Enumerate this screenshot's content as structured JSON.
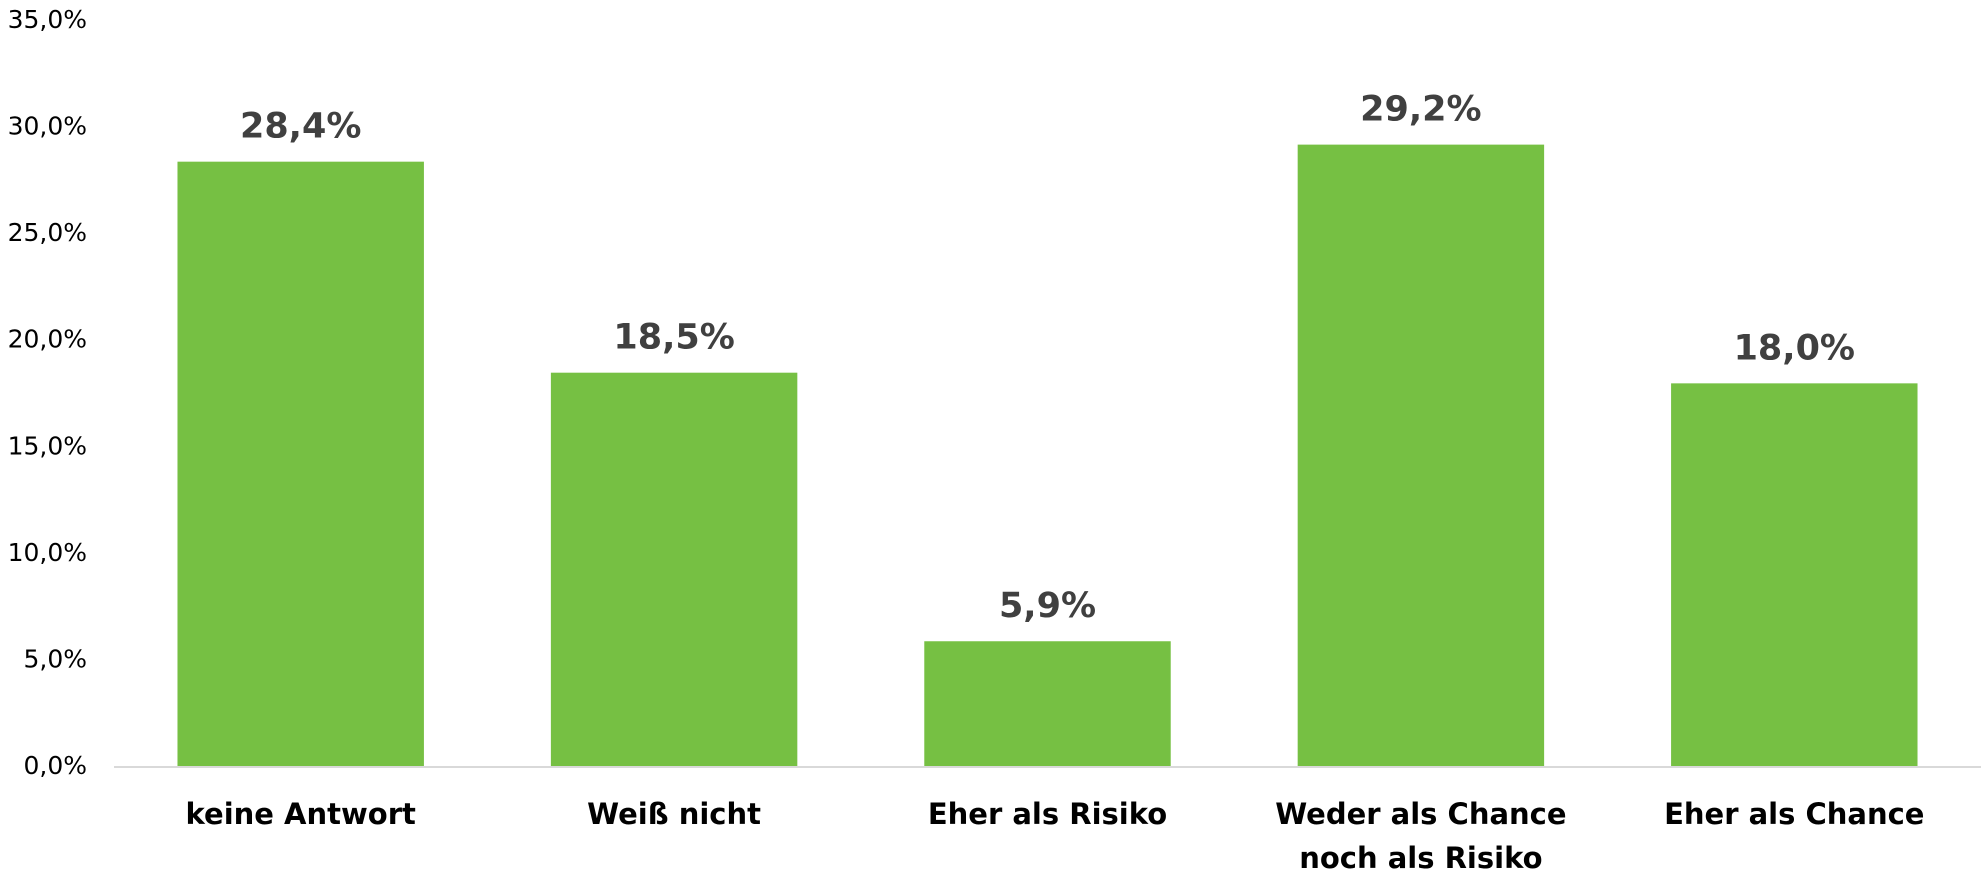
{
  "chart_data": {
    "type": "bar",
    "categories": [
      "keine Antwort",
      "Weiß nicht",
      "Eher als Risiko",
      "Weder als Chance noch als Risiko",
      "Eher als Chance"
    ],
    "values": [
      28.4,
      18.5,
      5.9,
      29.2,
      18.0
    ],
    "value_labels": [
      "28,4%",
      "18,5%",
      "5,9%",
      "29,2%",
      "18,0%"
    ],
    "color": "#76c043",
    "ylim": [
      0,
      35
    ],
    "yticks": [
      {
        "value": 0,
        "label": "0,0%"
      },
      {
        "value": 5,
        "label": "5,0%"
      },
      {
        "value": 10,
        "label": "10,0%"
      },
      {
        "value": 15,
        "label": "15,0%"
      },
      {
        "value": 20,
        "label": "20,0%"
      },
      {
        "value": 25,
        "label": "25,0%"
      },
      {
        "value": 30,
        "label": "30,0%"
      },
      {
        "value": 35,
        "label": "35,0%"
      }
    ],
    "grid": false
  }
}
